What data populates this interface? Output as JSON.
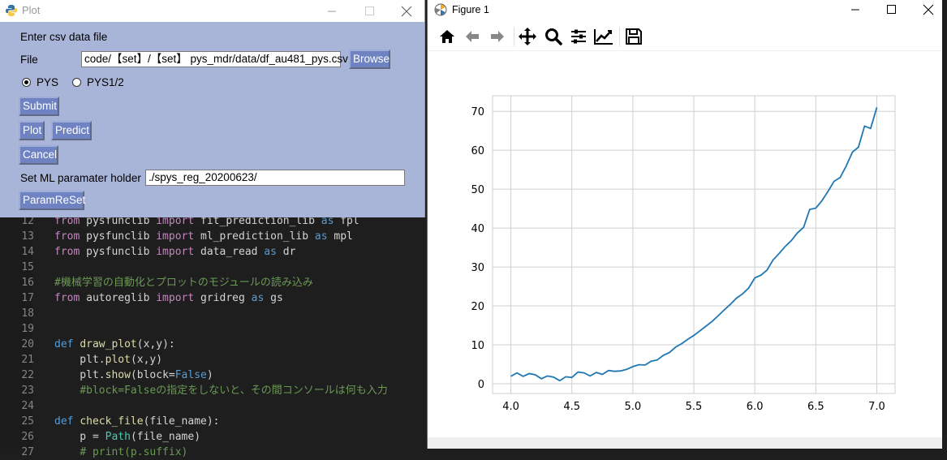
{
  "plot_window": {
    "title": "Plot",
    "enter_label": "Enter csv data file",
    "file_label": "File",
    "file_value": "code/【set】/【set】 pys_mdr/data/df_au481_pys.csv",
    "browse_label": "Browse",
    "radio_pys_label": "PYS",
    "radio_pys12_label": "PYS1/2",
    "selected_radio": "PYS",
    "submit_label": "Submit",
    "plot_label": "Plot",
    "predict_label": "Predict",
    "cancel_label": "Cancel",
    "ml_label": "Set ML paramater holder",
    "ml_value": "./spys_reg_20200623/",
    "paramreset_label": "ParamReSet"
  },
  "editor": {
    "lines": [
      {
        "n": "12",
        "code": "from pysfunclib import fit_prediction_lib as fpl"
      },
      {
        "n": "13",
        "code": "from pysfunclib import ml_prediction_lib as mpl"
      },
      {
        "n": "14",
        "code": "from pysfunclib import data_read as dr"
      },
      {
        "n": "15",
        "code": ""
      },
      {
        "n": "16",
        "code": "#機械学習の自動化とプロットのモジュールの読み込み"
      },
      {
        "n": "17",
        "code": "from autoreglib import gridreg as gs"
      },
      {
        "n": "18",
        "code": ""
      },
      {
        "n": "19",
        "code": ""
      },
      {
        "n": "20",
        "code": "def draw_plot(x,y):"
      },
      {
        "n": "21",
        "code": "    plt.plot(x,y)"
      },
      {
        "n": "22",
        "code": "    plt.show(block=False)"
      },
      {
        "n": "23",
        "code": "    #block=Falseの指定をしないと、その間コンソールは何も入力"
      },
      {
        "n": "24",
        "code": ""
      },
      {
        "n": "25",
        "code": "def check_file(file_name):"
      },
      {
        "n": "26",
        "code": "    p = Path(file_name)"
      },
      {
        "n": "27",
        "code": "    # print(p.suffix)"
      }
    ]
  },
  "figure_window": {
    "title": "Figure 1",
    "toolbar_icons": [
      "home-icon",
      "back-arrow-icon",
      "forward-arrow-icon",
      "pan-icon",
      "zoom-icon",
      "subplots-icon",
      "edit-axis-icon",
      "save-icon"
    ]
  },
  "chart_data": {
    "type": "line",
    "title": "",
    "xlabel": "",
    "ylabel": "",
    "xlim": [
      3.85,
      7.15
    ],
    "ylim": [
      -2.5,
      74
    ],
    "xticks": [
      4.0,
      4.5,
      5.0,
      5.5,
      6.0,
      6.5,
      7.0
    ],
    "xtick_labels": [
      "4.0",
      "4.5",
      "5.0",
      "5.5",
      "6.0",
      "6.5",
      "7.0"
    ],
    "yticks": [
      0,
      10,
      20,
      30,
      40,
      50,
      60,
      70
    ],
    "ytick_labels": [
      "0",
      "10",
      "20",
      "30",
      "40",
      "50",
      "60",
      "70"
    ],
    "grid": true,
    "line_color": "#1f77b4",
    "series": [
      {
        "x": [
          4.0,
          4.05,
          4.1,
          4.15,
          4.2,
          4.25,
          4.3,
          4.35,
          4.4,
          4.45,
          4.5,
          4.55,
          4.6,
          4.65,
          4.7,
          4.75,
          4.8,
          4.85,
          4.9,
          4.95,
          5.0,
          5.05,
          5.1,
          5.15,
          5.2,
          5.25,
          5.3,
          5.35,
          5.4,
          5.45,
          5.5,
          5.55,
          5.6,
          5.65,
          5.7,
          5.75,
          5.8,
          5.85,
          5.9,
          5.95,
          6.0,
          6.05,
          6.1,
          6.15,
          6.2,
          6.25,
          6.3,
          6.35,
          6.4,
          6.45,
          6.5,
          6.55,
          6.6,
          6.65,
          6.7,
          6.75,
          6.8,
          6.85,
          6.9,
          6.95,
          7.0
        ],
        "y": [
          1.9,
          2.8,
          1.9,
          2.6,
          2.3,
          1.3,
          2.0,
          1.7,
          0.8,
          1.8,
          1.6,
          3.0,
          2.8,
          2.0,
          2.9,
          2.4,
          3.4,
          3.2,
          3.3,
          3.7,
          4.4,
          4.9,
          4.8,
          5.8,
          6.1,
          7.3,
          8.0,
          9.4,
          10.3,
          11.4,
          12.4,
          13.6,
          14.8,
          16.0,
          17.5,
          19.0,
          20.4,
          22.0,
          23.1,
          24.6,
          27.2,
          27.9,
          29.2,
          31.8,
          33.5,
          35.3,
          36.8,
          38.8,
          40.2,
          44.8,
          45.1,
          47.0,
          49.4,
          52.0,
          53.0,
          56.0,
          59.5,
          60.8,
          66.2,
          65.6,
          71.0
        ]
      }
    ]
  }
}
